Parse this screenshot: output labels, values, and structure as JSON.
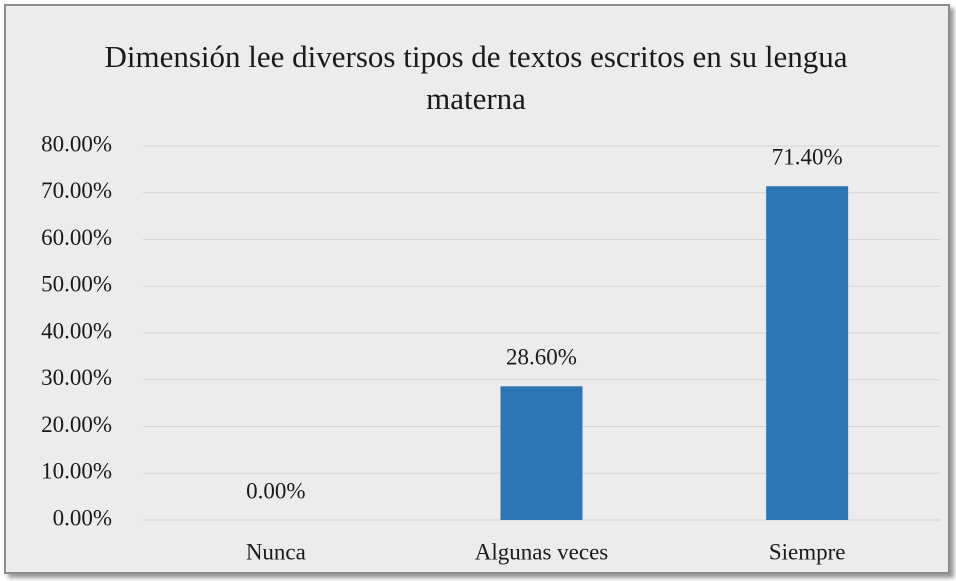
{
  "chart_data": {
    "type": "bar",
    "title": "Dimensión lee diversos tipos de textos escritos en su lengua materna",
    "categories": [
      "Nunca",
      "Algunas veces",
      "Siempre"
    ],
    "values": [
      0,
      28.6,
      71.4
    ],
    "value_labels": [
      "0.00%",
      "28.60%",
      "71.40%"
    ],
    "color": "#2e75b6",
    "ylim": [
      0,
      80
    ],
    "yticks": [
      {
        "value": 0,
        "label": "0.00%"
      },
      {
        "value": 10,
        "label": "10.00%"
      },
      {
        "value": 20,
        "label": "20.00%"
      },
      {
        "value": 30,
        "label": "30.00%"
      },
      {
        "value": 40,
        "label": "40.00%"
      },
      {
        "value": 50,
        "label": "50.00%"
      },
      {
        "value": 60,
        "label": "60.00%"
      },
      {
        "value": 70,
        "label": "70.00%"
      },
      {
        "value": 80,
        "label": "80.00%"
      }
    ],
    "grid": true
  }
}
